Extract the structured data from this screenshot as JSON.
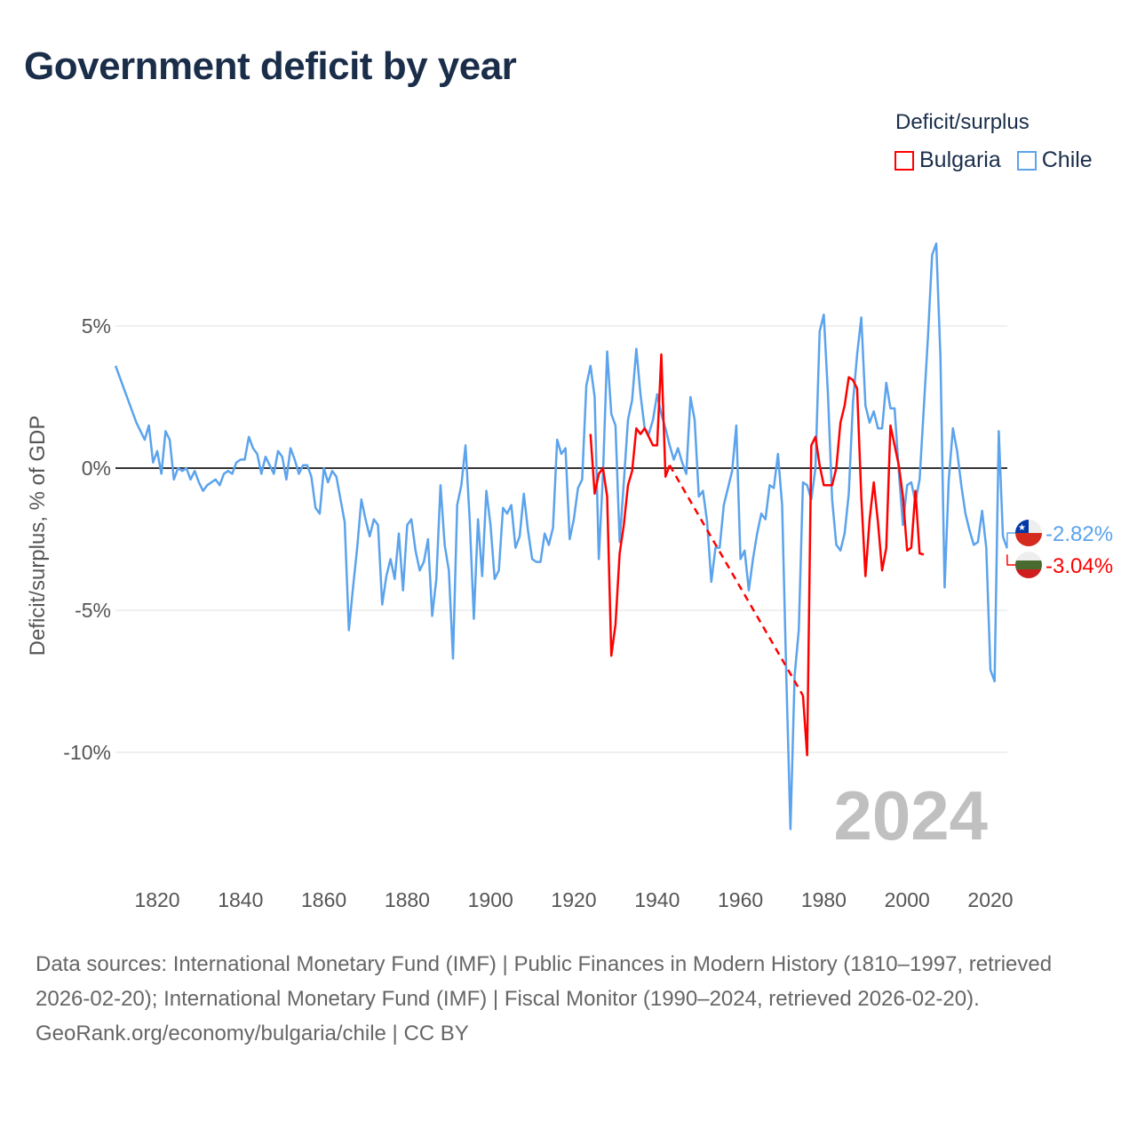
{
  "title": "Government deficit by year",
  "legend": {
    "title": "Deficit/surplus",
    "items": [
      {
        "name": "Bulgaria",
        "color": "#ff0000"
      },
      {
        "name": "Chile",
        "color": "#5ba3ec"
      }
    ]
  },
  "year_watermark": "2024",
  "footer": {
    "sources": "Data sources: International Monetary Fund (IMF) | Public Finances in Modern History (1810–1997, retrieved 2026-02-20); International Monetary Fund (IMF) | Fiscal Monitor (1990–2024, retrieved 2026-02-20).",
    "credit": "GeoRank.org/economy/bulgaria/chile | CC BY"
  },
  "chart_data": {
    "type": "line",
    "title": "Government deficit by year",
    "xlabel": "",
    "ylabel": "Deficit/surplus, % of GDP",
    "xlim": [
      1810,
      2024
    ],
    "ylim": [
      -13.5,
      8.5
    ],
    "x_ticks": [
      1820,
      1840,
      1860,
      1880,
      1900,
      1920,
      1940,
      1960,
      1980,
      2000,
      2020
    ],
    "y_ticks": [
      {
        "v": 5,
        "label": "5%"
      },
      {
        "v": 0,
        "label": "0%"
      },
      {
        "v": -5,
        "label": "-5%"
      },
      {
        "v": -10,
        "label": "-10%"
      }
    ],
    "series": [
      {
        "name": "Chile",
        "color": "#5ba3ec",
        "start_year": 1810,
        "end_label": "-2.82%",
        "values": [
          3.6,
          3.2,
          2.8,
          2.4,
          2.0,
          1.6,
          1.3,
          1.0,
          1.5,
          0.2,
          0.6,
          -0.2,
          1.3,
          1.0,
          -0.4,
          0.0,
          -0.1,
          0.0,
          -0.4,
          -0.1,
          -0.5,
          -0.8,
          -0.6,
          -0.5,
          -0.4,
          -0.6,
          -0.2,
          -0.1,
          -0.2,
          0.2,
          0.3,
          0.3,
          1.1,
          0.7,
          0.5,
          -0.2,
          0.4,
          0.1,
          -0.2,
          0.6,
          0.4,
          -0.4,
          0.7,
          0.3,
          -0.2,
          0.1,
          0.1,
          -0.3,
          -1.4,
          -1.6,
          0.0,
          -0.5,
          -0.1,
          -0.3,
          -1.1,
          -1.9,
          -5.7,
          -4.2,
          -2.8,
          -1.1,
          -1.8,
          -2.4,
          -1.8,
          -2.0,
          -4.8,
          -3.8,
          -3.2,
          -3.9,
          -2.3,
          -4.3,
          -2.0,
          -1.8,
          -2.9,
          -3.6,
          -3.3,
          -2.5,
          -5.2,
          -3.9,
          -0.6,
          -2.7,
          -3.6,
          -6.7,
          -1.3,
          -0.6,
          0.8,
          -1.8,
          -5.3,
          -1.8,
          -3.8,
          -0.8,
          -2.0,
          -3.9,
          -3.6,
          -1.4,
          -1.6,
          -1.3,
          -2.8,
          -2.4,
          -0.9,
          -2.2,
          -3.2,
          -3.3,
          -3.3,
          -2.3,
          -2.7,
          -2.1,
          1.0,
          0.5,
          0.7,
          -2.5,
          -1.8,
          -0.7,
          -0.4,
          2.9,
          3.6,
          2.5,
          -3.2,
          -0.2,
          4.1,
          1.9,
          1.5,
          -2.6,
          -0.5,
          1.7,
          2.4,
          4.2,
          2.6,
          1.4,
          1.2,
          1.7,
          2.6,
          1.9,
          1.4,
          0.8,
          0.3,
          0.7,
          0.2,
          -0.2,
          2.5,
          1.7,
          -1.0,
          -0.8,
          -1.9,
          -4.0,
          -2.8,
          -2.8,
          -1.3,
          -0.7,
          -0.1,
          1.5,
          -3.2,
          -2.9,
          -4.3,
          -3.2,
          -2.3,
          -1.6,
          -1.8,
          -0.6,
          -0.7,
          0.5,
          -1.3,
          -7.3,
          -12.7,
          -7.3,
          -5.7,
          -0.5,
          -0.6,
          -1.1,
          0.0,
          4.8,
          5.4,
          2.6,
          -1.1,
          -2.7,
          -2.9,
          -2.3,
          -0.9,
          2.3,
          4.0,
          5.3,
          2.2,
          1.6,
          2.0,
          1.4,
          1.4,
          3.0,
          2.1,
          2.1,
          -0.1,
          -2.0,
          -0.6,
          -0.5,
          -1.2,
          -0.4,
          2.1,
          4.6,
          7.5,
          7.9,
          3.9,
          -4.2,
          -0.4,
          1.4,
          0.6,
          -0.6,
          -1.6,
          -2.2,
          -2.7,
          -2.6,
          -1.5,
          -2.8,
          -7.1,
          -7.5,
          1.3,
          -2.4,
          -2.82
        ]
      },
      {
        "name": "Bulgaria",
        "color": "#ff0000",
        "start_year": 1924,
        "end_label": "-3.04%",
        "gap_style": "dashed",
        "values": [
          1.2,
          -0.9,
          -0.2,
          0.0,
          -1.0,
          -6.6,
          -5.5,
          -3.0,
          -2.0,
          -0.6,
          -0.1,
          1.4,
          1.2,
          1.4,
          1.1,
          0.8,
          0.8,
          4.0,
          -0.3,
          0.1,
          null,
          null,
          null,
          null,
          null,
          null,
          null,
          null,
          null,
          null,
          null,
          null,
          null,
          null,
          null,
          null,
          null,
          null,
          null,
          null,
          null,
          null,
          null,
          null,
          null,
          null,
          null,
          null,
          null,
          null,
          null,
          -8.0,
          -10.1,
          0.8,
          1.1,
          0.1,
          -0.6,
          -0.6,
          -0.6,
          0.0,
          1.6,
          2.2,
          3.2,
          3.1,
          2.8,
          -1.0,
          -3.8,
          -1.8,
          -0.5,
          -1.9,
          -3.6,
          -2.8,
          1.5,
          0.8,
          0.1,
          -1.0,
          -2.9,
          -2.8,
          -0.8,
          -3.0,
          -3.04
        ]
      }
    ],
    "grid": true,
    "legend_position": "top-right"
  }
}
